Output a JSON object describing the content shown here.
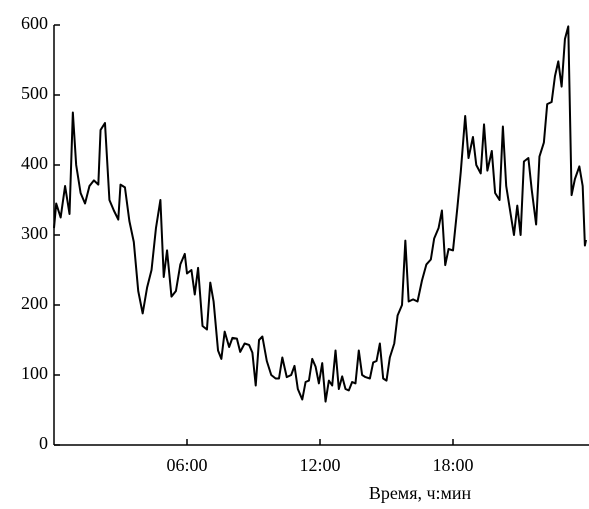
{
  "chart_data": {
    "type": "line",
    "x_label": "Время, ч:мин",
    "x": [
      0.0,
      0.1,
      0.3,
      0.5,
      0.7,
      0.85,
      1.0,
      1.2,
      1.4,
      1.6,
      1.8,
      2.0,
      2.1,
      2.3,
      2.5,
      2.7,
      2.9,
      3.0,
      3.2,
      3.4,
      3.6,
      3.8,
      4.0,
      4.2,
      4.4,
      4.6,
      4.8,
      4.95,
      5.1,
      5.3,
      5.5,
      5.7,
      5.9,
      6.0,
      6.2,
      6.35,
      6.5,
      6.7,
      6.9,
      7.05,
      7.2,
      7.4,
      7.55,
      7.7,
      7.9,
      8.05,
      8.25,
      8.4,
      8.6,
      8.8,
      8.95,
      9.1,
      9.25,
      9.4,
      9.6,
      9.8,
      10.0,
      10.15,
      10.3,
      10.5,
      10.7,
      10.85,
      11.0,
      11.2,
      11.35,
      11.5,
      11.65,
      11.8,
      11.95,
      12.1,
      12.25,
      12.4,
      12.55,
      12.7,
      12.85,
      13.0,
      13.15,
      13.3,
      13.45,
      13.6,
      13.75,
      13.9,
      14.05,
      14.25,
      14.4,
      14.55,
      14.7,
      14.85,
      15.0,
      15.15,
      15.35,
      15.5,
      15.7,
      15.85,
      16.0,
      16.2,
      16.4,
      16.6,
      16.8,
      17.0,
      17.15,
      17.35,
      17.5,
      17.65,
      17.8,
      18.0,
      18.2,
      18.35,
      18.55,
      18.7,
      18.9,
      19.05,
      19.25,
      19.4,
      19.55,
      19.75,
      19.9,
      20.1,
      20.25,
      20.4,
      20.6,
      20.75,
      20.9,
      21.05,
      21.2,
      21.4,
      21.55,
      21.75,
      21.9,
      22.1,
      22.25,
      22.45,
      22.6,
      22.75,
      22.9,
      23.05,
      23.2,
      23.35,
      23.5,
      23.7,
      23.85,
      23.95,
      24.0
    ],
    "values": [
      310,
      345,
      325,
      370,
      330,
      475,
      400,
      360,
      345,
      370,
      378,
      372,
      450,
      460,
      350,
      335,
      322,
      372,
      368,
      320,
      290,
      220,
      188,
      225,
      250,
      310,
      350,
      240,
      278,
      212,
      220,
      258,
      273,
      245,
      250,
      215,
      253,
      170,
      165,
      232,
      205,
      135,
      123,
      162,
      140,
      153,
      152,
      133,
      145,
      143,
      132,
      85,
      150,
      155,
      120,
      100,
      95,
      95,
      125,
      97,
      100,
      113,
      80,
      65,
      90,
      92,
      123,
      112,
      88,
      117,
      62,
      92,
      85,
      135,
      80,
      98,
      80,
      78,
      90,
      88,
      135,
      100,
      97,
      95,
      118,
      120,
      145,
      95,
      92,
      125,
      145,
      185,
      200,
      292,
      205,
      208,
      205,
      235,
      258,
      265,
      295,
      310,
      335,
      257,
      280,
      278,
      340,
      390,
      470,
      410,
      440,
      400,
      388,
      458,
      392,
      420,
      360,
      350,
      455,
      370,
      330,
      300,
      342,
      300,
      405,
      410,
      365,
      315,
      412,
      432,
      487,
      490,
      527,
      548,
      512,
      580,
      598,
      357,
      380,
      398,
      370,
      285,
      293
    ],
    "color": "#000000",
    "xlim": [
      0,
      24
    ],
    "xticks": [
      {
        "value": 6,
        "label": "06:00"
      },
      {
        "value": 12,
        "label": "12:00"
      },
      {
        "value": 18,
        "label": "18:00"
      }
    ],
    "ylim": [
      0,
      600
    ],
    "yticks": [
      0,
      100,
      200,
      300,
      400,
      500,
      600
    ]
  }
}
